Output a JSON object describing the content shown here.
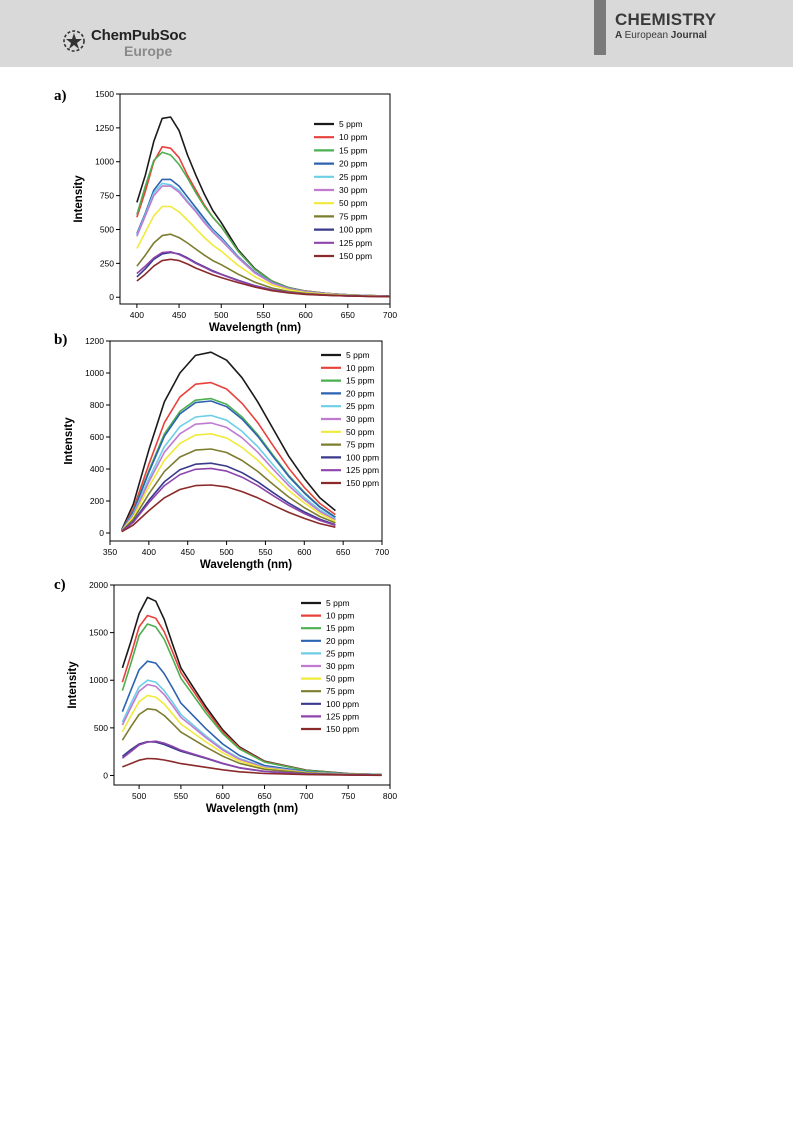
{
  "header": {
    "publisher_line1": "ChemPubSoc",
    "publisher_line2": "Europe",
    "journal_title": "CHEMISTRY",
    "journal_sub_a": "A",
    "journal_sub_european": "European",
    "journal_sub_journal": "Journal"
  },
  "colors": {
    "series": [
      "#1a1a1a",
      "#e8413c",
      "#4caf50",
      "#2c62b0",
      "#6ccfe6",
      "#c07bd0",
      "#f0ea3a",
      "#7d7d30",
      "#3a3a8c",
      "#8e44ad",
      "#8b2a2a"
    ]
  },
  "chart_data": [
    {
      "panel_label": "a)",
      "type": "line",
      "xlabel": "Wavelength (nm)",
      "ylabel": "Intensity",
      "xlim": [
        380,
        700
      ],
      "ylim": [
        -50,
        1500
      ],
      "xticks": [
        400,
        450,
        500,
        550,
        600,
        650,
        700
      ],
      "yticks": [
        0,
        250,
        500,
        750,
        1000,
        1250,
        1500
      ],
      "legend_position": "top-right",
      "x": [
        400,
        410,
        420,
        430,
        440,
        450,
        460,
        470,
        480,
        490,
        500,
        520,
        540,
        560,
        580,
        600,
        625,
        650,
        675,
        700
      ],
      "series": [
        {
          "name": "5 ppm",
          "values": [
            700,
            900,
            1150,
            1320,
            1330,
            1230,
            1050,
            900,
            760,
            640,
            550,
            350,
            210,
            120,
            70,
            45,
            28,
            18,
            12,
            8
          ]
        },
        {
          "name": "10 ppm",
          "values": [
            590,
            780,
            1000,
            1110,
            1100,
            1030,
            900,
            790,
            680,
            590,
            520,
            340,
            205,
            120,
            70,
            45,
            28,
            18,
            12,
            8
          ]
        },
        {
          "name": "15 ppm",
          "values": [
            610,
            820,
            1010,
            1070,
            1050,
            980,
            880,
            770,
            670,
            590,
            520,
            340,
            205,
            118,
            70,
            44,
            27,
            18,
            12,
            8
          ]
        },
        {
          "name": "20 ppm",
          "values": [
            470,
            620,
            790,
            870,
            870,
            820,
            740,
            660,
            580,
            500,
            440,
            300,
            185,
            110,
            65,
            42,
            26,
            17,
            11,
            7
          ]
        },
        {
          "name": "25 ppm",
          "values": [
            460,
            610,
            770,
            840,
            830,
            790,
            710,
            640,
            560,
            490,
            430,
            295,
            180,
            108,
            64,
            41,
            26,
            17,
            11,
            7
          ]
        },
        {
          "name": "30 ppm",
          "values": [
            450,
            600,
            750,
            820,
            820,
            775,
            700,
            630,
            550,
            480,
            420,
            290,
            178,
            105,
            63,
            40,
            25,
            16,
            11,
            7
          ]
        },
        {
          "name": "50 ppm",
          "values": [
            360,
            480,
            600,
            670,
            670,
            630,
            570,
            505,
            440,
            385,
            340,
            235,
            150,
            90,
            55,
            35,
            22,
            14,
            10,
            6
          ]
        },
        {
          "name": "75 ppm",
          "values": [
            230,
            310,
            400,
            455,
            465,
            440,
            400,
            355,
            310,
            270,
            240,
            170,
            110,
            68,
            42,
            28,
            18,
            12,
            8,
            5
          ]
        },
        {
          "name": "100 ppm",
          "values": [
            150,
            210,
            280,
            320,
            330,
            320,
            290,
            255,
            225,
            195,
            170,
            125,
            85,
            55,
            35,
            23,
            15,
            10,
            7,
            5
          ]
        },
        {
          "name": "125 ppm",
          "values": [
            175,
            230,
            290,
            330,
            335,
            315,
            285,
            250,
            220,
            190,
            168,
            122,
            83,
            53,
            34,
            22,
            15,
            10,
            7,
            5
          ]
        },
        {
          "name": "150 ppm",
          "values": [
            120,
            170,
            230,
            270,
            280,
            270,
            245,
            215,
            190,
            165,
            145,
            108,
            75,
            48,
            31,
            21,
            14,
            9,
            6,
            4
          ]
        }
      ]
    },
    {
      "panel_label": "b)",
      "type": "line",
      "xlabel": "Wavelength (nm)",
      "ylabel": "Intensity",
      "xlim": [
        350,
        700
      ],
      "ylim": [
        -50,
        1200
      ],
      "xticks": [
        350,
        400,
        450,
        500,
        550,
        600,
        650,
        700
      ],
      "yticks": [
        0,
        200,
        400,
        600,
        800,
        1000,
        1200
      ],
      "legend_position": "top-right",
      "x": [
        365,
        380,
        400,
        420,
        440,
        460,
        480,
        500,
        520,
        540,
        560,
        580,
        600,
        620,
        640
      ],
      "series": [
        {
          "name": "5 ppm",
          "values": [
            20,
            180,
            520,
            820,
            1000,
            1110,
            1130,
            1080,
            970,
            820,
            650,
            480,
            340,
            220,
            140
          ]
        },
        {
          "name": "10 ppm",
          "values": [
            15,
            150,
            430,
            690,
            850,
            930,
            940,
            900,
            810,
            690,
            545,
            405,
            285,
            185,
            115
          ]
        },
        {
          "name": "15 ppm",
          "values": [
            15,
            135,
            390,
            620,
            760,
            830,
            840,
            805,
            725,
            615,
            485,
            360,
            255,
            165,
            100
          ]
        },
        {
          "name": "20 ppm",
          "values": [
            15,
            132,
            380,
            605,
            745,
            815,
            825,
            790,
            712,
            605,
            477,
            354,
            250,
            162,
            98
          ]
        },
        {
          "name": "25 ppm",
          "values": [
            14,
            118,
            340,
            540,
            665,
            725,
            735,
            705,
            635,
            540,
            425,
            315,
            222,
            144,
            88
          ]
        },
        {
          "name": "30 ppm",
          "values": [
            14,
            110,
            320,
            505,
            620,
            680,
            688,
            660,
            595,
            505,
            398,
            296,
            208,
            135,
            82
          ]
        },
        {
          "name": "50 ppm",
          "values": [
            12,
            100,
            290,
            455,
            560,
            612,
            620,
            594,
            535,
            455,
            358,
            266,
            188,
            122,
            74
          ]
        },
        {
          "name": "75 ppm",
          "values": [
            11,
            85,
            245,
            385,
            475,
            518,
            525,
            503,
            453,
            385,
            303,
            225,
            159,
            103,
            63
          ]
        },
        {
          "name": "100 ppm",
          "values": [
            10,
            72,
            205,
            320,
            395,
            430,
            436,
            418,
            377,
            320,
            252,
            187,
            132,
            86,
            52
          ]
        },
        {
          "name": "125 ppm",
          "values": [
            10,
            67,
            190,
            296,
            365,
            398,
            404,
            387,
            349,
            296,
            233,
            173,
            122,
            79,
            48
          ]
        },
        {
          "name": "150 ppm",
          "values": [
            8,
            50,
            140,
            220,
            272,
            296,
            300,
            288,
            259,
            220,
            173,
            129,
            91,
            59,
            36
          ]
        }
      ]
    },
    {
      "panel_label": "c)",
      "type": "line",
      "xlabel": "Wavelength (nm)",
      "ylabel": "Intensity",
      "xlim": [
        470,
        800
      ],
      "ylim": [
        -100,
        2000
      ],
      "xticks": [
        500,
        550,
        600,
        650,
        700,
        750,
        800
      ],
      "yticks": [
        0,
        500,
        1000,
        1500,
        2000
      ],
      "legend_position": "top-right",
      "x": [
        480,
        490,
        500,
        510,
        520,
        530,
        540,
        550,
        560,
        580,
        600,
        620,
        650,
        700,
        750,
        790
      ],
      "series": [
        {
          "name": "5 ppm",
          "values": [
            1130,
            1400,
            1700,
            1870,
            1830,
            1640,
            1380,
            1130,
            990,
            720,
            480,
            300,
            150,
            55,
            20,
            10
          ]
        },
        {
          "name": "10 ppm",
          "values": [
            980,
            1260,
            1560,
            1680,
            1650,
            1510,
            1300,
            1080,
            950,
            690,
            460,
            290,
            145,
            53,
            19,
            9
          ]
        },
        {
          "name": "15 ppm",
          "values": [
            890,
            1170,
            1470,
            1590,
            1560,
            1430,
            1230,
            1020,
            900,
            655,
            440,
            278,
            140,
            51,
            18,
            9
          ]
        },
        {
          "name": "20 ppm",
          "values": [
            670,
            890,
            1110,
            1200,
            1180,
            1070,
            920,
            760,
            670,
            490,
            330,
            210,
            105,
            40,
            15,
            7
          ]
        },
        {
          "name": "25 ppm",
          "values": [
            560,
            750,
            930,
            1000,
            980,
            890,
            770,
            640,
            565,
            415,
            280,
            178,
            90,
            34,
            13,
            6
          ]
        },
        {
          "name": "30 ppm",
          "values": [
            530,
            710,
            885,
            955,
            935,
            850,
            735,
            610,
            540,
            397,
            268,
            170,
            86,
            32,
            12,
            6
          ]
        },
        {
          "name": "50 ppm",
          "values": [
            460,
            620,
            775,
            840,
            822,
            750,
            648,
            540,
            478,
            352,
            238,
            151,
            76,
            29,
            11,
            5
          ]
        },
        {
          "name": "75 ppm",
          "values": [
            370,
            510,
            640,
            700,
            690,
            630,
            545,
            455,
            403,
            298,
            202,
            128,
            65,
            25,
            9,
            4
          ]
        },
        {
          "name": "100 ppm",
          "values": [
            200,
            270,
            330,
            355,
            350,
            325,
            290,
            255,
            230,
            180,
            125,
            80,
            42,
            17,
            7,
            3
          ]
        },
        {
          "name": "125 ppm",
          "values": [
            180,
            250,
            320,
            350,
            360,
            340,
            305,
            265,
            238,
            185,
            128,
            82,
            43,
            17,
            7,
            3
          ]
        },
        {
          "name": "150 ppm",
          "values": [
            90,
            125,
            160,
            178,
            175,
            162,
            145,
            125,
            112,
            86,
            60,
            39,
            21,
            9,
            4,
            2
          ]
        }
      ]
    }
  ]
}
